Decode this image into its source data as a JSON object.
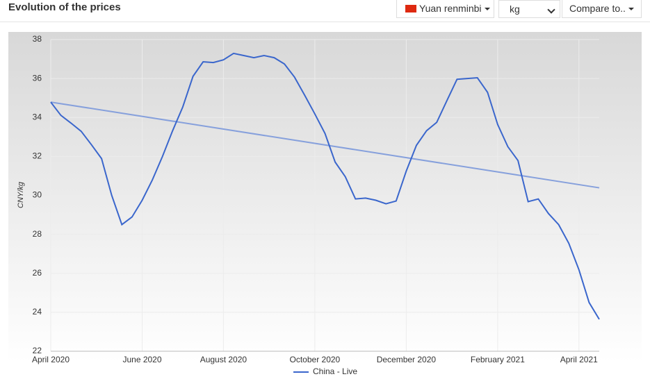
{
  "header": {
    "title": "Evolution of the prices",
    "currency": "Yuan renminbi",
    "unit": "kg",
    "compare": "Compare to.."
  },
  "chart_data": {
    "type": "line",
    "y_label": "CNY/kg",
    "categories": [
      "April 2020",
      null,
      null,
      null,
      null,
      null,
      null,
      null,
      null,
      "June 2020",
      null,
      null,
      null,
      null,
      null,
      null,
      null,
      "August 2020",
      null,
      null,
      null,
      null,
      null,
      null,
      null,
      null,
      "October 2020",
      null,
      null,
      null,
      null,
      null,
      null,
      null,
      null,
      "December 2020",
      null,
      null,
      null,
      null,
      null,
      null,
      null,
      null,
      "February 2021",
      null,
      null,
      null,
      null,
      null,
      null,
      null,
      "April 2021",
      null,
      null
    ],
    "series": [
      {
        "name": "China - Live",
        "color": "#3a66cc",
        "values": [
          34.79,
          34.11,
          33.71,
          33.29,
          32.61,
          31.89,
          30.0,
          28.5,
          28.89,
          29.75,
          30.79,
          32.0,
          33.32,
          34.54,
          36.11,
          36.86,
          36.82,
          36.96,
          37.29,
          37.18,
          37.07,
          37.18,
          37.07,
          36.75,
          36.07,
          35.14,
          34.18,
          33.18,
          31.71,
          30.96,
          29.82,
          29.86,
          29.75,
          29.57,
          29.71,
          31.25,
          32.57,
          33.32,
          33.75,
          34.86,
          35.96,
          36.0,
          36.04,
          35.29,
          33.64,
          32.5,
          31.79,
          29.68,
          29.82,
          29.07,
          28.5,
          27.54,
          26.18,
          24.5,
          23.64
        ]
      }
    ],
    "trend_line": {
      "color": "#86a0dc",
      "values": [
        34.79,
        30.39
      ]
    },
    "ylim": [
      22,
      38
    ],
    "yticks": [
      22,
      24,
      26,
      28,
      30,
      32,
      34,
      36,
      38
    ],
    "grid": true
  }
}
